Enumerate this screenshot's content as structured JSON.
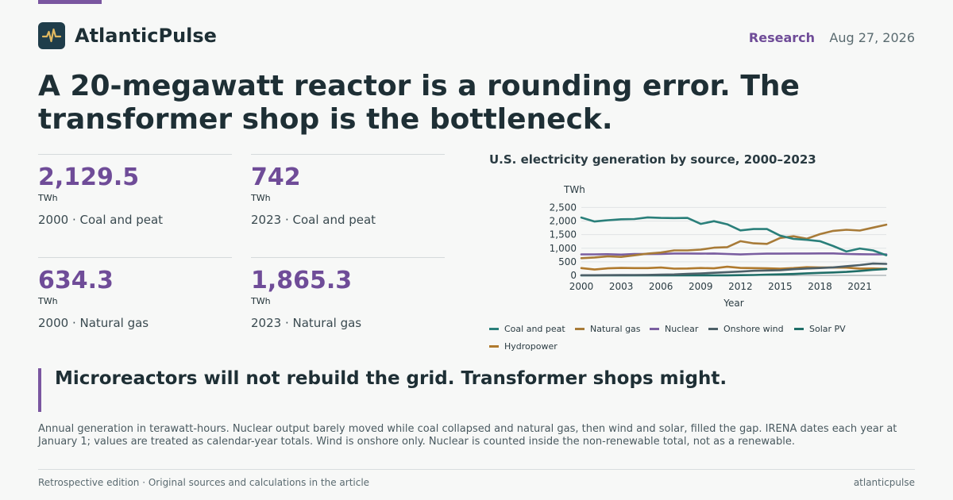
{
  "brand": {
    "name": "AtlanticPulse",
    "logo_icon": "pulse-icon",
    "colors": {
      "accent": "#7a56a0",
      "logo_bg": "#1f3d4a",
      "logo_line": "#e0b860"
    }
  },
  "header": {
    "section": "Research",
    "date": "Aug 27, 2026"
  },
  "headline": "A 20-megawatt reactor is a rounding error. The transformer shop is the bottleneck.",
  "stats": [
    {
      "value": "2,129.5",
      "unit": "TWh",
      "label": "2000 · Coal and peat"
    },
    {
      "value": "742",
      "unit": "TWh",
      "label": "2023 · Coal and peat"
    },
    {
      "value": "634.3",
      "unit": "TWh",
      "label": "2000 · Natural gas"
    },
    {
      "value": "1,865.3",
      "unit": "TWh",
      "label": "2023 · Natural gas"
    }
  ],
  "chart_data": {
    "type": "line",
    "title": "U.S. electricity generation by source, 2000–2023",
    "xlabel": "Year",
    "ylabel": "TWh",
    "x": [
      2000,
      2001,
      2002,
      2003,
      2004,
      2005,
      2006,
      2007,
      2008,
      2009,
      2010,
      2011,
      2012,
      2013,
      2014,
      2015,
      2016,
      2017,
      2018,
      2019,
      2020,
      2021,
      2022,
      2023
    ],
    "xticks": [
      2000,
      2003,
      2006,
      2009,
      2012,
      2015,
      2018,
      2021
    ],
    "xtick_labels": [
      "2000",
      "2003",
      "2006",
      "2009",
      "2012",
      "2015",
      "2018",
      "2021"
    ],
    "yticks": [
      0,
      500,
      1000,
      1500,
      2000,
      2500
    ],
    "ytick_labels": [
      "0",
      "500",
      "1,000",
      "1,500",
      "2,000",
      "2,500"
    ],
    "xlim": [
      2000,
      2023
    ],
    "ylim": [
      0,
      2600
    ],
    "grid": true,
    "legend": "bottom",
    "series": [
      {
        "name": "Coal and peat",
        "color": "#2a7f7a",
        "values": [
          2129.5,
          1985,
          2030,
          2065,
          2075,
          2135,
          2115,
          2110,
          2115,
          1895,
          1995,
          1880,
          1655,
          1705,
          1705,
          1465,
          1345,
          1310,
          1260,
          1080,
          880,
          990,
          920,
          742
        ]
      },
      {
        "name": "Natural gas",
        "color": "#a87b38",
        "values": [
          634.3,
          660,
          700,
          680,
          740,
          800,
          840,
          920,
          920,
          950,
          1020,
          1040,
          1260,
          1180,
          1160,
          1380,
          1440,
          1350,
          1520,
          1640,
          1680,
          1650,
          1760,
          1865.3
        ]
      },
      {
        "name": "Nuclear",
        "color": "#7a5ea0",
        "values": [
          775,
          775,
          780,
          765,
          790,
          785,
          790,
          805,
          805,
          800,
          805,
          790,
          770,
          790,
          800,
          800,
          805,
          805,
          810,
          810,
          790,
          780,
          775,
          775
        ]
      },
      {
        "name": "Onshore wind",
        "color": "#4d6068",
        "values": [
          6,
          7,
          10,
          11,
          14,
          18,
          27,
          34,
          55,
          74,
          95,
          120,
          141,
          168,
          182,
          191,
          227,
          254,
          272,
          296,
          338,
          380,
          434,
          425
        ]
      },
      {
        "name": "Solar PV",
        "color": "#1f6e68",
        "values": [
          0,
          0,
          0,
          0,
          0,
          1,
          1,
          1,
          2,
          2,
          3,
          4,
          9,
          16,
          28,
          38,
          54,
          77,
          93,
          107,
          130,
          164,
          204,
          238
        ]
      },
      {
        "name": "Hydropower",
        "color": "#b07a2e",
        "values": [
          270,
          215,
          260,
          275,
          268,
          270,
          290,
          247,
          254,
          273,
          260,
          319,
          276,
          269,
          259,
          249,
          268,
          300,
          292,
          288,
          285,
          251,
          255,
          240
        ]
      }
    ]
  },
  "callout": "Microreactors will not rebuild the grid. Transformer shops might.",
  "note": "Annual generation in terawatt-hours. Nuclear output barely moved while coal collapsed and natural gas, then wind and solar, filled the gap. IRENA dates each year at January 1; values are treated as calendar-year totals. Wind is onshore only. Nuclear is counted inside the non-renewable total, not as a renewable.",
  "footer": {
    "left": "Retrospective edition · Original sources and calculations in the article",
    "right": "atlanticpulse"
  }
}
